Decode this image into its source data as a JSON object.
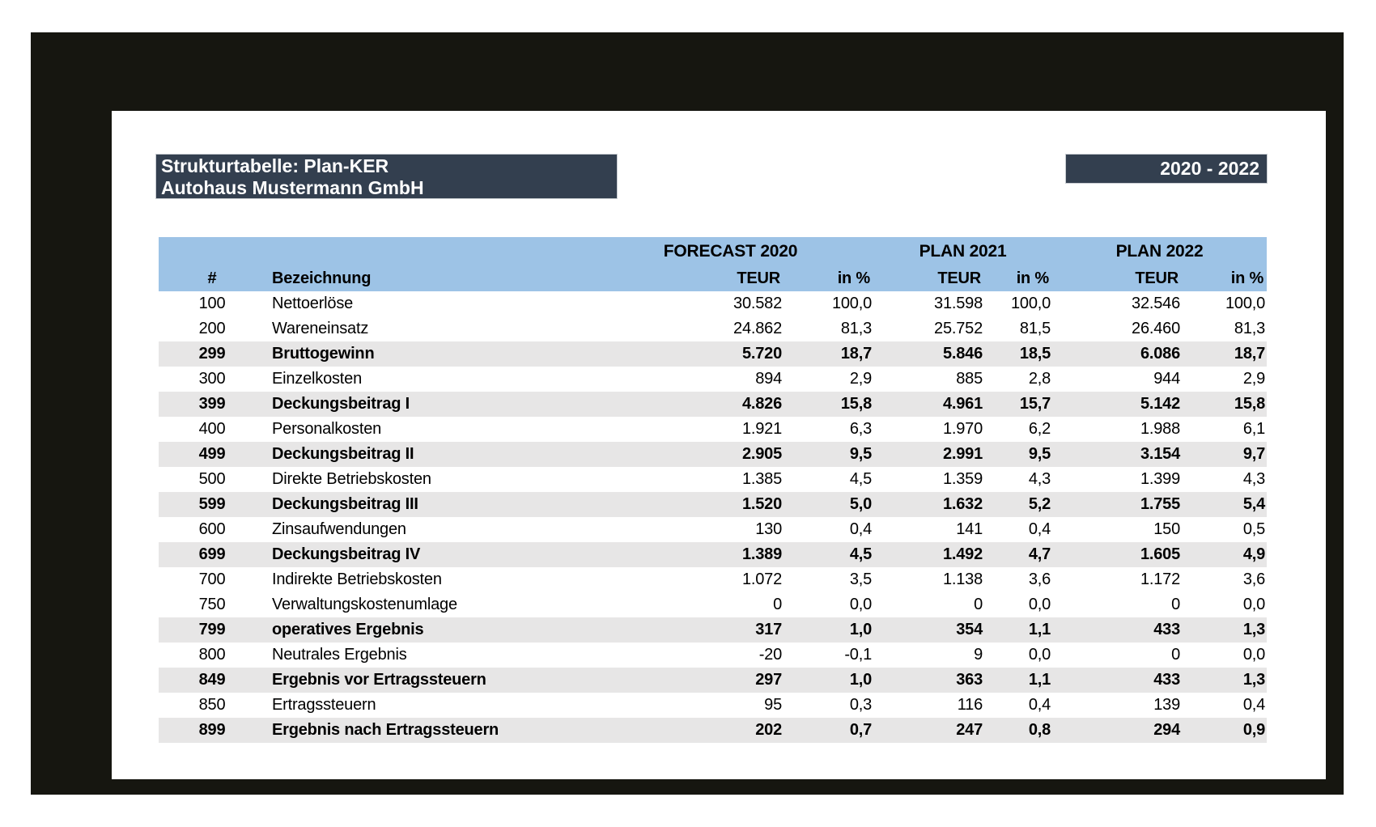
{
  "report": {
    "title_line1": "Strukturtabelle: Plan-KER",
    "title_line2": "Autohaus Mustermann GmbH",
    "period": "2020 - 2022"
  },
  "colors": {
    "dark": "#333F4F",
    "header_blue": "#9DC3E6",
    "stripe_gray": "#E7E6E6",
    "frame_black": "#161610"
  },
  "table": {
    "group_headers": [
      "FORECAST 2020",
      "PLAN 2021",
      "PLAN 2022"
    ],
    "col_headers": {
      "num": "#",
      "name": "Bezeichnung",
      "teur": "TEUR",
      "pct": "in %"
    },
    "rows": [
      {
        "num": "100",
        "name": "Nettoerlöse",
        "bold": false,
        "values": [
          "30.582",
          "100,0",
          "31.598",
          "100,0",
          "32.546",
          "100,0"
        ]
      },
      {
        "num": "200",
        "name": "Wareneinsatz",
        "bold": false,
        "values": [
          "24.862",
          "81,3",
          "25.752",
          "81,5",
          "26.460",
          "81,3"
        ]
      },
      {
        "num": "299",
        "name": "Bruttogewinn",
        "bold": true,
        "values": [
          "5.720",
          "18,7",
          "5.846",
          "18,5",
          "6.086",
          "18,7"
        ]
      },
      {
        "num": "300",
        "name": "Einzelkosten",
        "bold": false,
        "values": [
          "894",
          "2,9",
          "885",
          "2,8",
          "944",
          "2,9"
        ]
      },
      {
        "num": "399",
        "name": "Deckungsbeitrag I",
        "bold": true,
        "values": [
          "4.826",
          "15,8",
          "4.961",
          "15,7",
          "5.142",
          "15,8"
        ]
      },
      {
        "num": "400",
        "name": "Personalkosten",
        "bold": false,
        "values": [
          "1.921",
          "6,3",
          "1.970",
          "6,2",
          "1.988",
          "6,1"
        ]
      },
      {
        "num": "499",
        "name": "Deckungsbeitrag II",
        "bold": true,
        "values": [
          "2.905",
          "9,5",
          "2.991",
          "9,5",
          "3.154",
          "9,7"
        ]
      },
      {
        "num": "500",
        "name": "Direkte Betriebskosten",
        "bold": false,
        "values": [
          "1.385",
          "4,5",
          "1.359",
          "4,3",
          "1.399",
          "4,3"
        ]
      },
      {
        "num": "599",
        "name": "Deckungsbeitrag III",
        "bold": true,
        "values": [
          "1.520",
          "5,0",
          "1.632",
          "5,2",
          "1.755",
          "5,4"
        ]
      },
      {
        "num": "600",
        "name": "Zinsaufwendungen",
        "bold": false,
        "values": [
          "130",
          "0,4",
          "141",
          "0,4",
          "150",
          "0,5"
        ]
      },
      {
        "num": "699",
        "name": "Deckungsbeitrag IV",
        "bold": true,
        "values": [
          "1.389",
          "4,5",
          "1.492",
          "4,7",
          "1.605",
          "4,9"
        ]
      },
      {
        "num": "700",
        "name": "Indirekte Betriebskosten",
        "bold": false,
        "values": [
          "1.072",
          "3,5",
          "1.138",
          "3,6",
          "1.172",
          "3,6"
        ]
      },
      {
        "num": "750",
        "name": "Verwaltungskostenumlage",
        "bold": false,
        "values": [
          "0",
          "0,0",
          "0",
          "0,0",
          "0",
          "0,0"
        ]
      },
      {
        "num": "799",
        "name": "operatives Ergebnis",
        "bold": true,
        "values": [
          "317",
          "1,0",
          "354",
          "1,1",
          "433",
          "1,3"
        ]
      },
      {
        "num": "800",
        "name": "Neutrales Ergebnis",
        "bold": false,
        "values": [
          "-20",
          "-0,1",
          "9",
          "0,0",
          "0",
          "0,0"
        ]
      },
      {
        "num": "849",
        "name": "Ergebnis vor Ertragssteuern",
        "bold": true,
        "values": [
          "297",
          "1,0",
          "363",
          "1,1",
          "433",
          "1,3"
        ]
      },
      {
        "num": "850",
        "name": "Ertragssteuern",
        "bold": false,
        "values": [
          "95",
          "0,3",
          "116",
          "0,4",
          "139",
          "0,4"
        ]
      },
      {
        "num": "899",
        "name": "Ergebnis nach Ertragssteuern",
        "bold": true,
        "values": [
          "202",
          "0,7",
          "247",
          "0,8",
          "294",
          "0,9"
        ]
      }
    ]
  }
}
